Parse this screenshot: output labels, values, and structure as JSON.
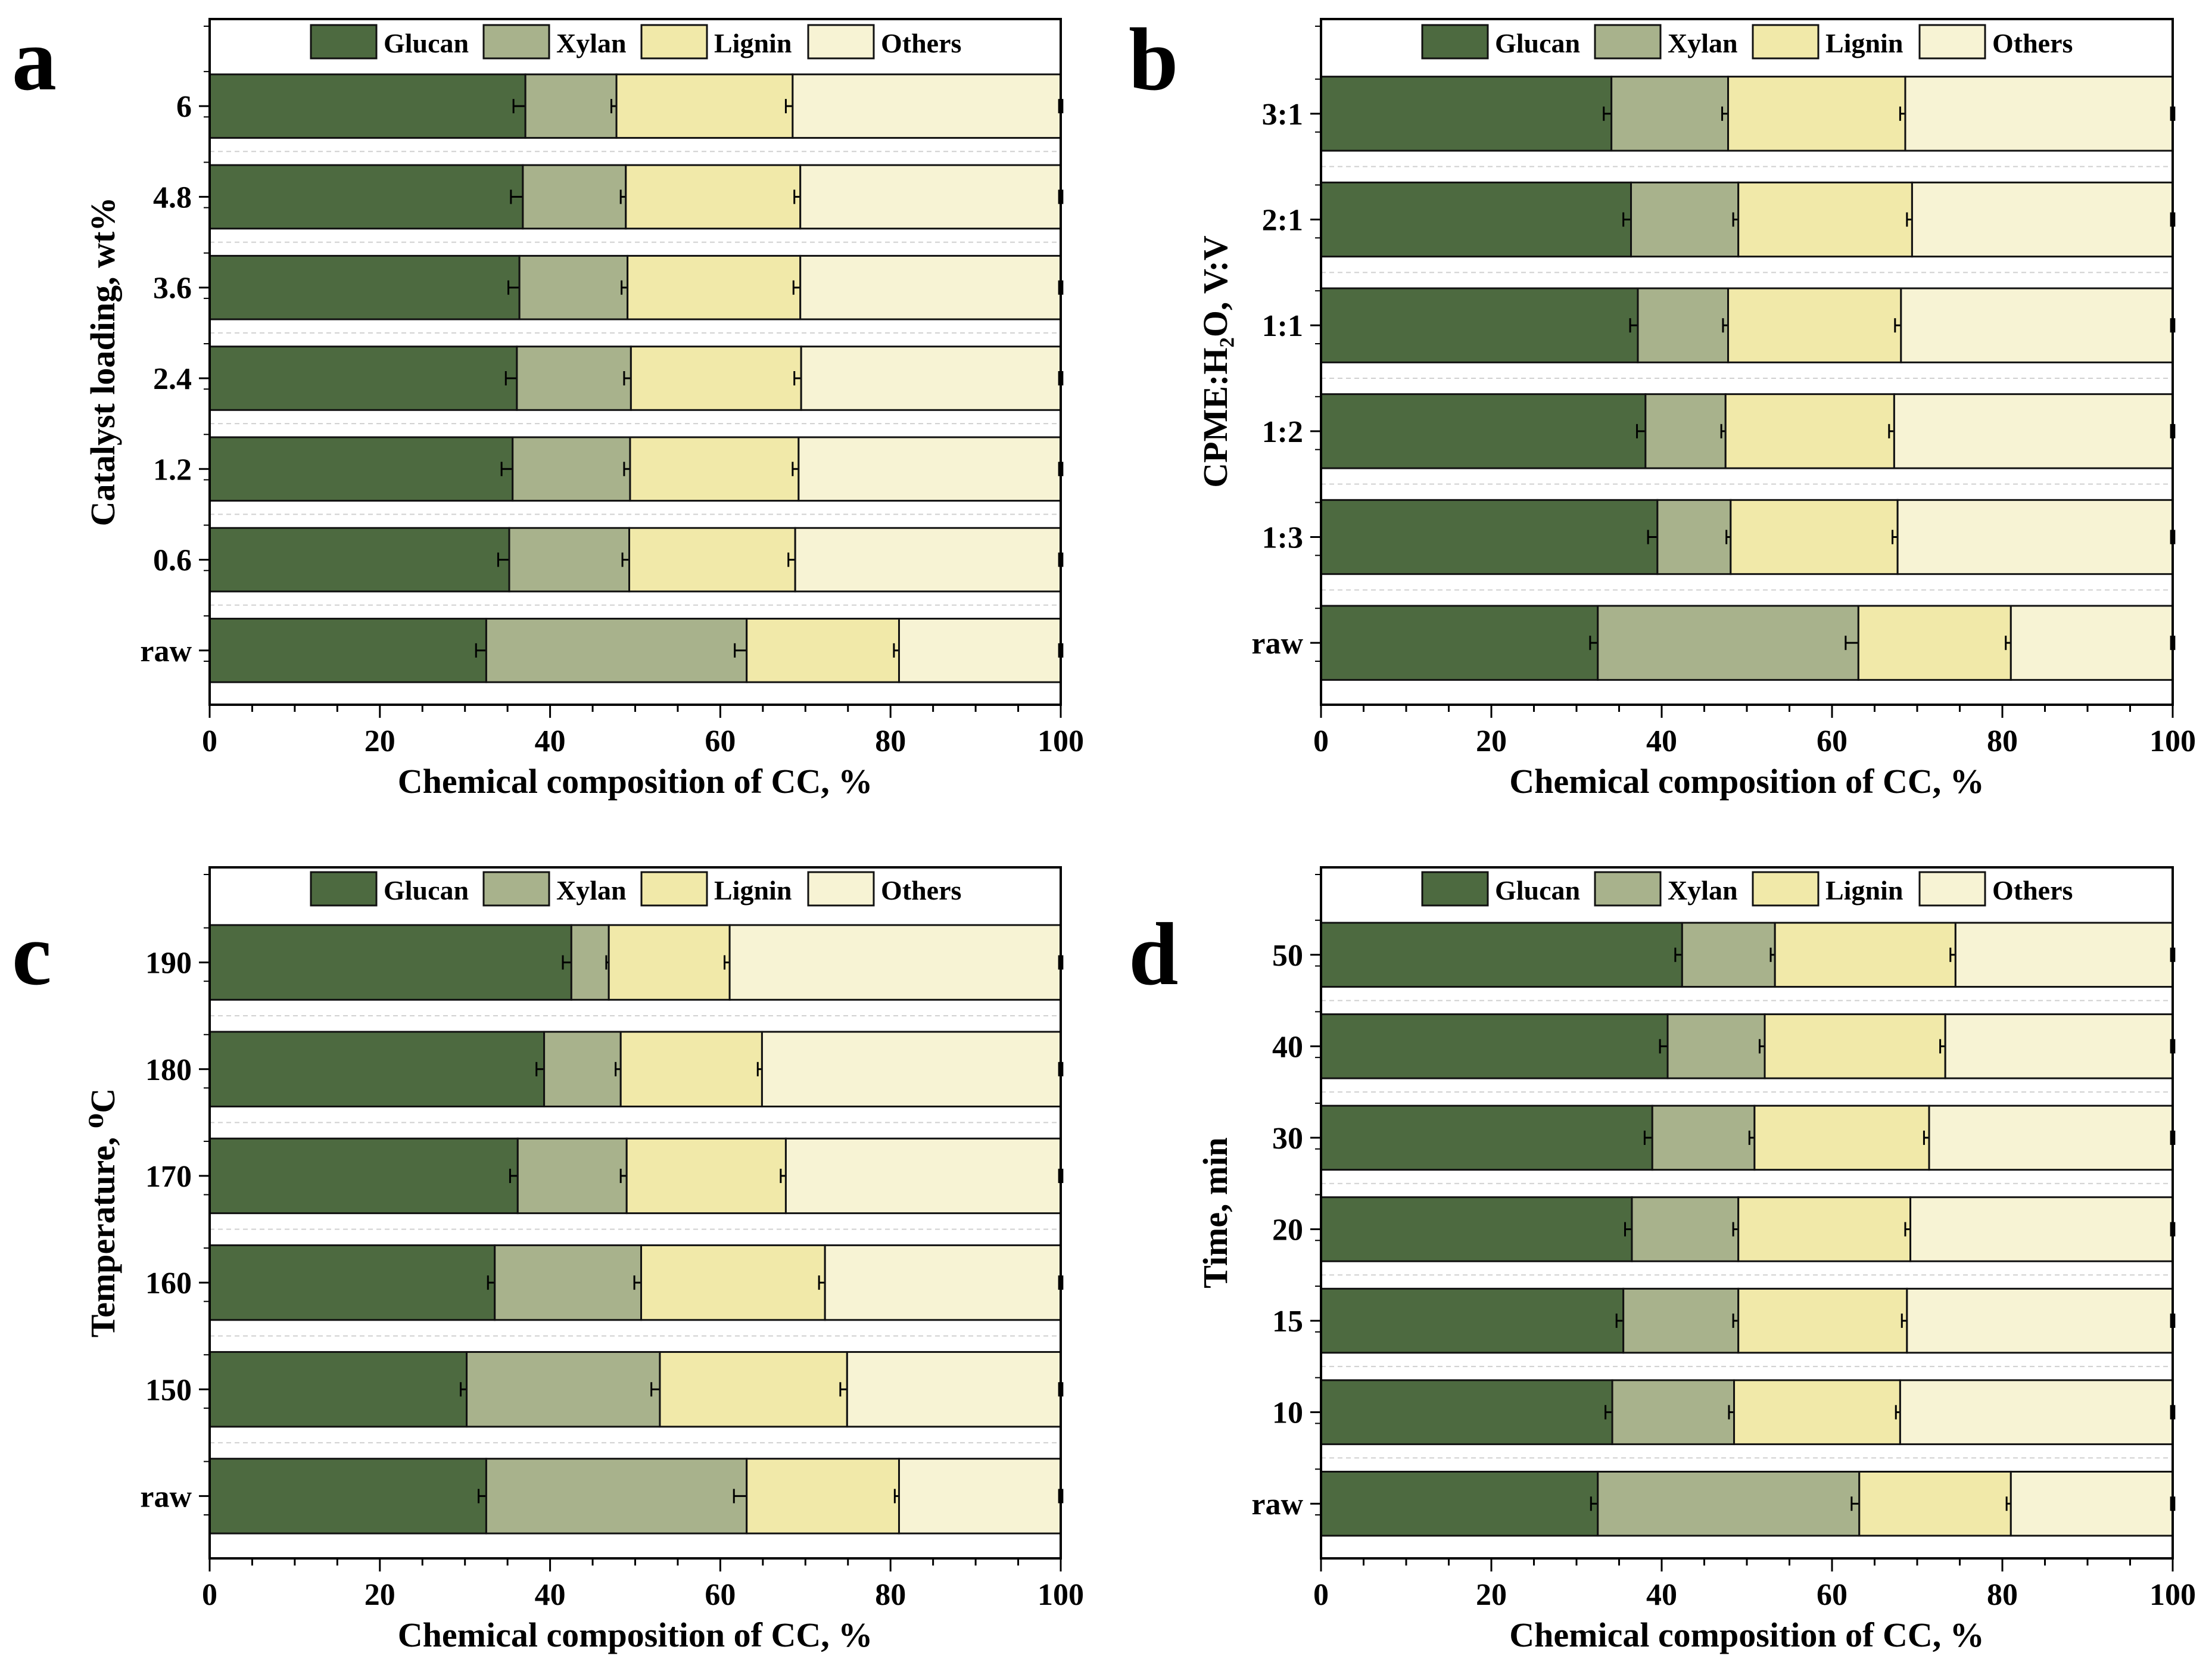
{
  "colors": {
    "glucan": "#4d6a40",
    "xylan": "#a8b28c",
    "lignin": "#f1e9a9",
    "others": "#f7f3d4"
  },
  "legend": [
    "Glucan",
    "Xylan",
    "Lignin",
    "Others"
  ],
  "chart_data": [
    {
      "type": "stacked-bar-horizontal",
      "panel_label": "a",
      "ylabel": "Catalyst loading, wt%",
      "xlabel": "Chemical composition of CC, %",
      "xlim": [
        0,
        100
      ],
      "xticks": [
        "0",
        "20",
        "40",
        "60",
        "80",
        "100"
      ],
      "categories": [
        "raw",
        "0.6",
        "1.2",
        "2.4",
        "3.6",
        "4.8",
        "6"
      ],
      "series": [
        {
          "name": "Glucan",
          "values": [
            32.5,
            35.2,
            35.6,
            36.1,
            36.4,
            36.8,
            37.1
          ],
          "errors": [
            1.2,
            1.3,
            1.3,
            1.3,
            1.3,
            1.4,
            1.4
          ]
        },
        {
          "name": "Xylan",
          "values": [
            30.6,
            14.1,
            13.8,
            13.4,
            12.7,
            12.1,
            10.7
          ],
          "errors": [
            1.4,
            0.8,
            0.7,
            0.8,
            0.7,
            0.6,
            0.6
          ]
        },
        {
          "name": "Lignin",
          "values": [
            17.9,
            19.5,
            19.8,
            20.0,
            20.3,
            20.5,
            20.7
          ],
          "errors": [
            0.6,
            0.8,
            0.7,
            0.8,
            0.8,
            0.7,
            0.8
          ]
        },
        {
          "name": "Others",
          "values": [
            19.0,
            31.2,
            30.8,
            30.5,
            30.6,
            30.6,
            31.5
          ],
          "errors": [
            0.2,
            0.2,
            0.2,
            0.2,
            0.2,
            0.2,
            0.2
          ]
        }
      ]
    },
    {
      "type": "stacked-bar-horizontal",
      "panel_label": "b",
      "ylabel": "CPME:H₂O, V:V",
      "xlabel": "Chemical composition of CC, %",
      "xlim": [
        0,
        100
      ],
      "xticks": [
        "0",
        "20",
        "40",
        "60",
        "80",
        "100"
      ],
      "categories": [
        "raw",
        "1:3",
        "1:2",
        "1:1",
        "2:1",
        "3:1"
      ],
      "series": [
        {
          "name": "Glucan",
          "values": [
            32.5,
            39.5,
            38.1,
            37.2,
            36.4,
            34.1
          ],
          "errors": [
            0.9,
            1.1,
            1.0,
            0.9,
            0.9,
            0.9
          ]
        },
        {
          "name": "Xylan",
          "values": [
            30.6,
            8.6,
            9.4,
            10.6,
            12.6,
            13.7
          ],
          "errors": [
            1.5,
            0.5,
            0.5,
            0.6,
            0.6,
            0.7
          ]
        },
        {
          "name": "Lignin",
          "values": [
            17.9,
            19.6,
            19.8,
            20.3,
            20.4,
            20.8
          ],
          "errors": [
            0.6,
            0.6,
            0.6,
            0.7,
            0.6,
            0.6
          ]
        },
        {
          "name": "Others",
          "values": [
            19.0,
            32.3,
            32.7,
            31.9,
            30.6,
            31.4
          ],
          "errors": [
            0.2,
            0.2,
            0.2,
            0.2,
            0.2,
            0.2
          ]
        }
      ]
    },
    {
      "type": "stacked-bar-horizontal",
      "panel_label": "c",
      "ylabel": "Temperature, ⁰C",
      "xlabel": "Chemical composition of CC, %",
      "xlim": [
        0,
        100
      ],
      "xticks": [
        "0",
        "20",
        "40",
        "60",
        "80",
        "100"
      ],
      "categories": [
        "raw",
        "150",
        "160",
        "170",
        "180",
        "190"
      ],
      "series": [
        {
          "name": "Glucan",
          "values": [
            32.5,
            30.2,
            33.5,
            36.2,
            39.3,
            42.5
          ],
          "errors": [
            0.9,
            0.7,
            0.8,
            0.9,
            0.9,
            1.0
          ]
        },
        {
          "name": "Xylan",
          "values": [
            30.6,
            22.7,
            17.2,
            12.8,
            9.0,
            4.4
          ],
          "errors": [
            1.5,
            1.0,
            0.8,
            0.7,
            0.6,
            0.3
          ]
        },
        {
          "name": "Lignin",
          "values": [
            17.9,
            22.0,
            21.6,
            18.7,
            16.6,
            14.2
          ],
          "errors": [
            0.5,
            0.8,
            0.7,
            0.6,
            0.5,
            0.6
          ]
        },
        {
          "name": "Others",
          "values": [
            19.0,
            25.1,
            27.7,
            32.3,
            35.1,
            38.9
          ],
          "errors": [
            0.2,
            0.2,
            0.2,
            0.2,
            0.2,
            0.2
          ]
        }
      ]
    },
    {
      "type": "stacked-bar-horizontal",
      "panel_label": "d",
      "ylabel": "Time, min",
      "xlabel": "Chemical composition of CC, %",
      "xlim": [
        0,
        100
      ],
      "xticks": [
        "0",
        "20",
        "40",
        "60",
        "80",
        "100"
      ],
      "categories": [
        "raw",
        "10",
        "15",
        "20",
        "30",
        "40",
        "50"
      ],
      "series": [
        {
          "name": "Glucan",
          "values": [
            32.5,
            34.2,
            35.5,
            36.5,
            38.9,
            40.7,
            42.4
          ],
          "errors": [
            0.8,
            0.8,
            0.8,
            0.8,
            0.9,
            0.9,
            0.8
          ]
        },
        {
          "name": "Xylan",
          "values": [
            30.7,
            14.3,
            13.5,
            12.5,
            12.0,
            11.4,
            10.9
          ],
          "errors": [
            0.9,
            0.6,
            0.6,
            0.6,
            0.6,
            0.6,
            0.5
          ]
        },
        {
          "name": "Lignin",
          "values": [
            17.8,
            19.5,
            19.8,
            20.2,
            20.5,
            21.2,
            21.2
          ],
          "errors": [
            0.5,
            0.5,
            0.6,
            0.6,
            0.6,
            0.6,
            0.6
          ]
        },
        {
          "name": "Others",
          "values": [
            19.0,
            32.0,
            31.2,
            30.8,
            28.6,
            26.7,
            25.5
          ],
          "errors": [
            0.2,
            0.2,
            0.2,
            0.2,
            0.2,
            0.2,
            0.2
          ]
        }
      ]
    }
  ]
}
